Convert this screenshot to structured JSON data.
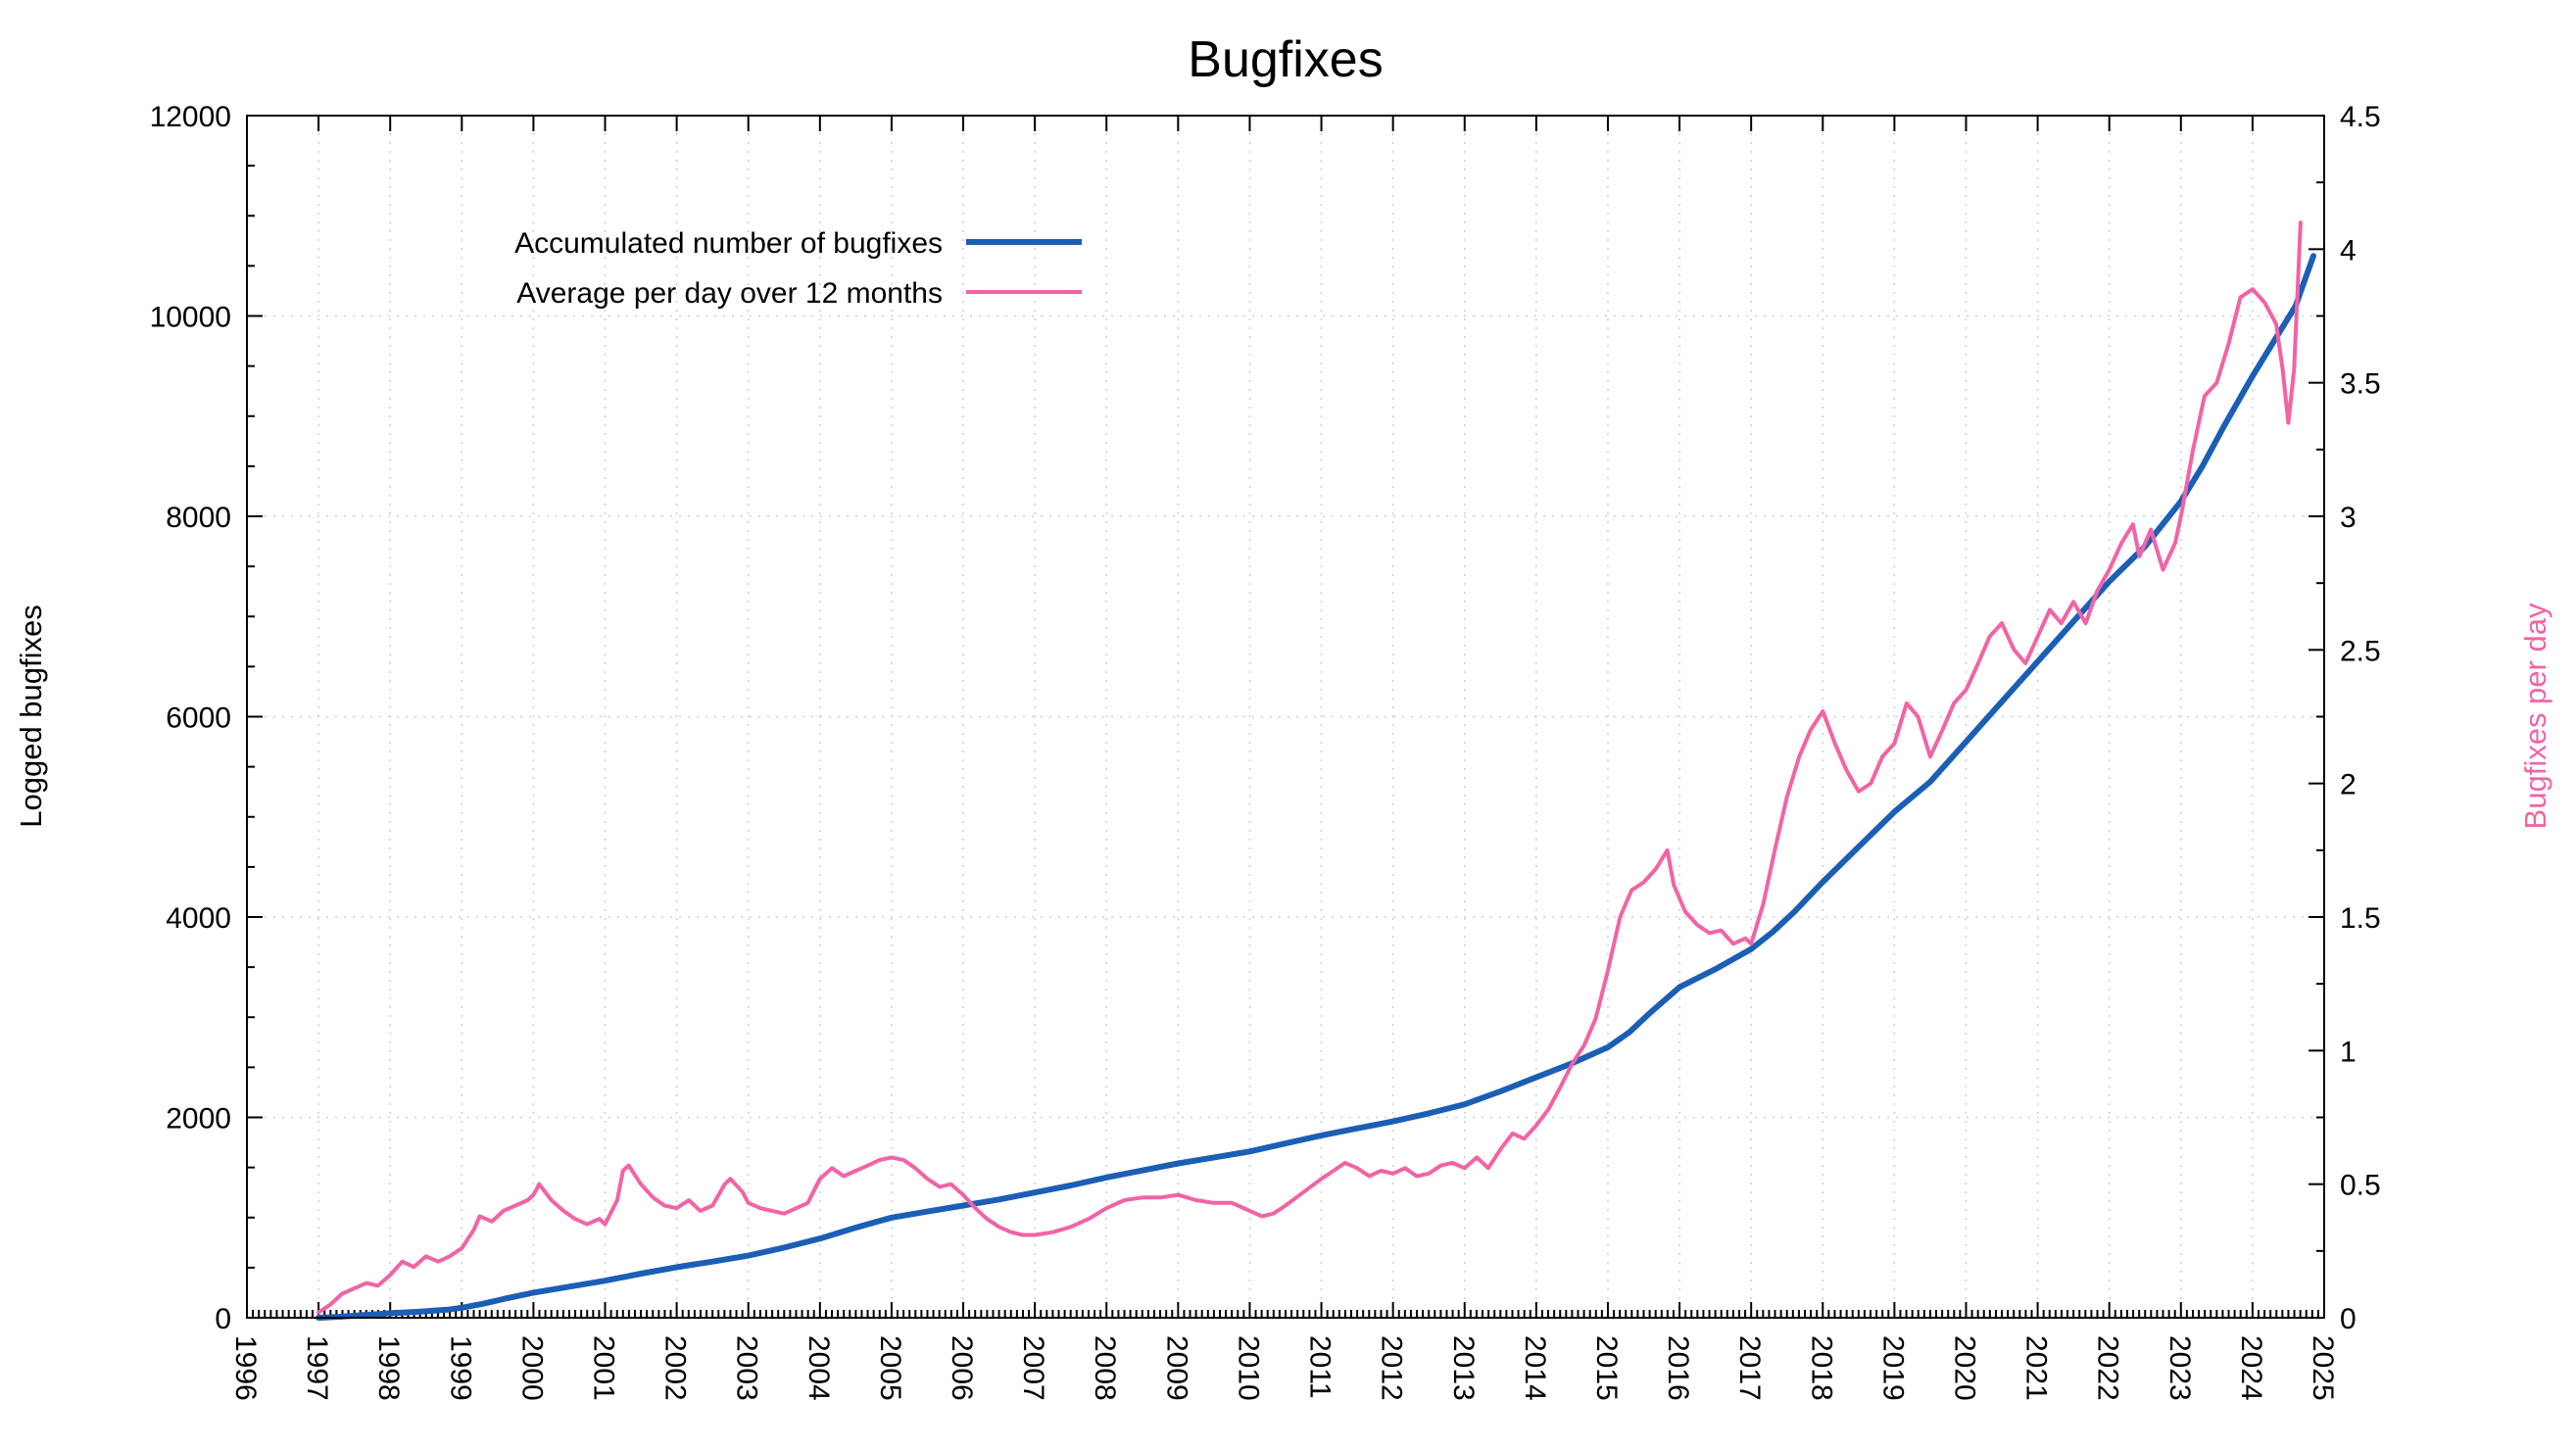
{
  "chart_data": {
    "type": "line",
    "title": "Bugfixes",
    "ylabel": "Logged bugfixes",
    "y2label": "Bugfixes per day",
    "x_range": [
      1996,
      2025
    ],
    "ylim": [
      0,
      12000
    ],
    "y2lim": [
      0,
      4.5
    ],
    "x_ticks": [
      1996,
      1997,
      1998,
      1999,
      2000,
      2001,
      2002,
      2003,
      2004,
      2005,
      2006,
      2007,
      2008,
      2009,
      2010,
      2011,
      2012,
      2013,
      2014,
      2015,
      2016,
      2017,
      2018,
      2019,
      2020,
      2021,
      2022,
      2023,
      2024,
      2025
    ],
    "y_ticks": [
      0,
      2000,
      4000,
      6000,
      8000,
      10000,
      12000
    ],
    "y2_ticks": [
      0,
      0.5,
      1,
      1.5,
      2,
      2.5,
      3,
      3.5,
      4,
      4.5
    ],
    "y_minor_step": 500,
    "y2_minor_step": 0.25,
    "x_minor_per_year": 12,
    "grid": true,
    "legend_position": "top-left-inside",
    "background": "#ffffff",
    "series": [
      {
        "name": "Accumulated number of bugfixes",
        "axis": "left",
        "color": "#1b5eb5",
        "width": 6,
        "points": [
          [
            1997.0,
            0
          ],
          [
            1997.3,
            10
          ],
          [
            1997.6,
            25
          ],
          [
            1998.0,
            45
          ],
          [
            1998.4,
            60
          ],
          [
            1998.8,
            80
          ],
          [
            1999.0,
            100
          ],
          [
            1999.3,
            140
          ],
          [
            1999.6,
            190
          ],
          [
            2000.0,
            250
          ],
          [
            2000.5,
            310
          ],
          [
            2001.0,
            370
          ],
          [
            2001.5,
            440
          ],
          [
            2002.0,
            505
          ],
          [
            2002.5,
            560
          ],
          [
            2003.0,
            620
          ],
          [
            2003.5,
            700
          ],
          [
            2004.0,
            790
          ],
          [
            2004.5,
            900
          ],
          [
            2005.0,
            1000
          ],
          [
            2005.5,
            1060
          ],
          [
            2006.0,
            1120
          ],
          [
            2006.5,
            1180
          ],
          [
            2007.0,
            1250
          ],
          [
            2007.5,
            1320
          ],
          [
            2008.0,
            1400
          ],
          [
            2008.5,
            1470
          ],
          [
            2009.0,
            1540
          ],
          [
            2009.5,
            1600
          ],
          [
            2010.0,
            1660
          ],
          [
            2010.5,
            1740
          ],
          [
            2011.0,
            1820
          ],
          [
            2011.5,
            1890
          ],
          [
            2012.0,
            1960
          ],
          [
            2012.5,
            2040
          ],
          [
            2013.0,
            2130
          ],
          [
            2013.5,
            2260
          ],
          [
            2014.0,
            2400
          ],
          [
            2014.5,
            2540
          ],
          [
            2015.0,
            2700
          ],
          [
            2015.3,
            2850
          ],
          [
            2015.6,
            3050
          ],
          [
            2016.0,
            3300
          ],
          [
            2016.5,
            3480
          ],
          [
            2017.0,
            3680
          ],
          [
            2017.3,
            3850
          ],
          [
            2017.6,
            4050
          ],
          [
            2018.0,
            4350
          ],
          [
            2018.5,
            4700
          ],
          [
            2019.0,
            5050
          ],
          [
            2019.5,
            5350
          ],
          [
            2020.0,
            5750
          ],
          [
            2020.5,
            6150
          ],
          [
            2021.0,
            6550
          ],
          [
            2021.5,
            6950
          ],
          [
            2022.0,
            7350
          ],
          [
            2022.5,
            7700
          ],
          [
            2023.0,
            8150
          ],
          [
            2023.3,
            8500
          ],
          [
            2023.6,
            8900
          ],
          [
            2024.0,
            9400
          ],
          [
            2024.3,
            9750
          ],
          [
            2024.6,
            10100
          ],
          [
            2024.85,
            10600
          ]
        ]
      },
      {
        "name": "Average per day over 12 months",
        "axis": "right",
        "color": "#f263a5",
        "width": 4,
        "points": [
          [
            1997.0,
            0.02
          ],
          [
            1997.17,
            0.05
          ],
          [
            1997.33,
            0.09
          ],
          [
            1997.5,
            0.11
          ],
          [
            1997.67,
            0.13
          ],
          [
            1997.83,
            0.12
          ],
          [
            1998.0,
            0.16
          ],
          [
            1998.17,
            0.21
          ],
          [
            1998.33,
            0.19
          ],
          [
            1998.5,
            0.23
          ],
          [
            1998.67,
            0.21
          ],
          [
            1998.83,
            0.23
          ],
          [
            1999.0,
            0.26
          ],
          [
            1999.17,
            0.33
          ],
          [
            1999.25,
            0.38
          ],
          [
            1999.42,
            0.36
          ],
          [
            1999.58,
            0.4
          ],
          [
            1999.75,
            0.42
          ],
          [
            1999.92,
            0.44
          ],
          [
            2000.0,
            0.46
          ],
          [
            2000.08,
            0.5
          ],
          [
            2000.25,
            0.44
          ],
          [
            2000.42,
            0.4
          ],
          [
            2000.58,
            0.37
          ],
          [
            2000.75,
            0.35
          ],
          [
            2000.92,
            0.37
          ],
          [
            2001.0,
            0.35
          ],
          [
            2001.17,
            0.44
          ],
          [
            2001.25,
            0.55
          ],
          [
            2001.33,
            0.57
          ],
          [
            2001.5,
            0.5
          ],
          [
            2001.67,
            0.45
          ],
          [
            2001.83,
            0.42
          ],
          [
            2002.0,
            0.41
          ],
          [
            2002.17,
            0.44
          ],
          [
            2002.33,
            0.4
          ],
          [
            2002.5,
            0.42
          ],
          [
            2002.67,
            0.5
          ],
          [
            2002.75,
            0.52
          ],
          [
            2002.92,
            0.47
          ],
          [
            2003.0,
            0.43
          ],
          [
            2003.17,
            0.41
          ],
          [
            2003.33,
            0.4
          ],
          [
            2003.5,
            0.39
          ],
          [
            2003.67,
            0.41
          ],
          [
            2003.83,
            0.43
          ],
          [
            2004.0,
            0.52
          ],
          [
            2004.17,
            0.56
          ],
          [
            2004.33,
            0.53
          ],
          [
            2004.5,
            0.55
          ],
          [
            2004.67,
            0.57
          ],
          [
            2004.83,
            0.59
          ],
          [
            2005.0,
            0.6
          ],
          [
            2005.17,
            0.59
          ],
          [
            2005.33,
            0.56
          ],
          [
            2005.5,
            0.52
          ],
          [
            2005.67,
            0.49
          ],
          [
            2005.83,
            0.5
          ],
          [
            2006.0,
            0.46
          ],
          [
            2006.17,
            0.41
          ],
          [
            2006.33,
            0.37
          ],
          [
            2006.5,
            0.34
          ],
          [
            2006.67,
            0.32
          ],
          [
            2006.83,
            0.31
          ],
          [
            2007.0,
            0.31
          ],
          [
            2007.25,
            0.32
          ],
          [
            2007.5,
            0.34
          ],
          [
            2007.75,
            0.37
          ],
          [
            2008.0,
            0.41
          ],
          [
            2008.25,
            0.44
          ],
          [
            2008.5,
            0.45
          ],
          [
            2008.75,
            0.45
          ],
          [
            2009.0,
            0.46
          ],
          [
            2009.25,
            0.44
          ],
          [
            2009.5,
            0.43
          ],
          [
            2009.75,
            0.43
          ],
          [
            2010.0,
            0.4
          ],
          [
            2010.17,
            0.38
          ],
          [
            2010.33,
            0.39
          ],
          [
            2010.5,
            0.42
          ],
          [
            2010.75,
            0.47
          ],
          [
            2011.0,
            0.52
          ],
          [
            2011.17,
            0.55
          ],
          [
            2011.33,
            0.58
          ],
          [
            2011.5,
            0.56
          ],
          [
            2011.67,
            0.53
          ],
          [
            2011.83,
            0.55
          ],
          [
            2012.0,
            0.54
          ],
          [
            2012.17,
            0.56
          ],
          [
            2012.33,
            0.53
          ],
          [
            2012.5,
            0.54
          ],
          [
            2012.67,
            0.57
          ],
          [
            2012.83,
            0.58
          ],
          [
            2013.0,
            0.56
          ],
          [
            2013.17,
            0.6
          ],
          [
            2013.33,
            0.56
          ],
          [
            2013.5,
            0.63
          ],
          [
            2013.67,
            0.69
          ],
          [
            2013.83,
            0.67
          ],
          [
            2014.0,
            0.72
          ],
          [
            2014.17,
            0.78
          ],
          [
            2014.33,
            0.86
          ],
          [
            2014.5,
            0.95
          ],
          [
            2014.67,
            1.02
          ],
          [
            2014.83,
            1.12
          ],
          [
            2015.0,
            1.3
          ],
          [
            2015.17,
            1.5
          ],
          [
            2015.33,
            1.6
          ],
          [
            2015.5,
            1.63
          ],
          [
            2015.67,
            1.68
          ],
          [
            2015.83,
            1.75
          ],
          [
            2015.92,
            1.62
          ],
          [
            2016.08,
            1.52
          ],
          [
            2016.25,
            1.47
          ],
          [
            2016.42,
            1.44
          ],
          [
            2016.58,
            1.45
          ],
          [
            2016.75,
            1.4
          ],
          [
            2016.92,
            1.42
          ],
          [
            2017.0,
            1.4
          ],
          [
            2017.17,
            1.55
          ],
          [
            2017.33,
            1.75
          ],
          [
            2017.5,
            1.95
          ],
          [
            2017.67,
            2.1
          ],
          [
            2017.83,
            2.2
          ],
          [
            2018.0,
            2.27
          ],
          [
            2018.17,
            2.15
          ],
          [
            2018.33,
            2.05
          ],
          [
            2018.5,
            1.97
          ],
          [
            2018.67,
            2.0
          ],
          [
            2018.83,
            2.1
          ],
          [
            2019.0,
            2.15
          ],
          [
            2019.17,
            2.3
          ],
          [
            2019.33,
            2.25
          ],
          [
            2019.5,
            2.1
          ],
          [
            2019.67,
            2.2
          ],
          [
            2019.83,
            2.3
          ],
          [
            2020.0,
            2.35
          ],
          [
            2020.17,
            2.45
          ],
          [
            2020.33,
            2.55
          ],
          [
            2020.5,
            2.6
          ],
          [
            2020.67,
            2.5
          ],
          [
            2020.83,
            2.45
          ],
          [
            2021.0,
            2.55
          ],
          [
            2021.17,
            2.65
          ],
          [
            2021.33,
            2.6
          ],
          [
            2021.5,
            2.68
          ],
          [
            2021.67,
            2.6
          ],
          [
            2021.83,
            2.72
          ],
          [
            2022.0,
            2.8
          ],
          [
            2022.17,
            2.9
          ],
          [
            2022.33,
            2.97
          ],
          [
            2022.42,
            2.85
          ],
          [
            2022.58,
            2.95
          ],
          [
            2022.75,
            2.8
          ],
          [
            2022.92,
            2.9
          ],
          [
            2023.0,
            3.0
          ],
          [
            2023.17,
            3.25
          ],
          [
            2023.33,
            3.45
          ],
          [
            2023.5,
            3.5
          ],
          [
            2023.67,
            3.65
          ],
          [
            2023.83,
            3.82
          ],
          [
            2024.0,
            3.85
          ],
          [
            2024.17,
            3.8
          ],
          [
            2024.33,
            3.72
          ],
          [
            2024.42,
            3.55
          ],
          [
            2024.5,
            3.35
          ],
          [
            2024.58,
            3.55
          ],
          [
            2024.67,
            4.1
          ]
        ]
      }
    ]
  }
}
